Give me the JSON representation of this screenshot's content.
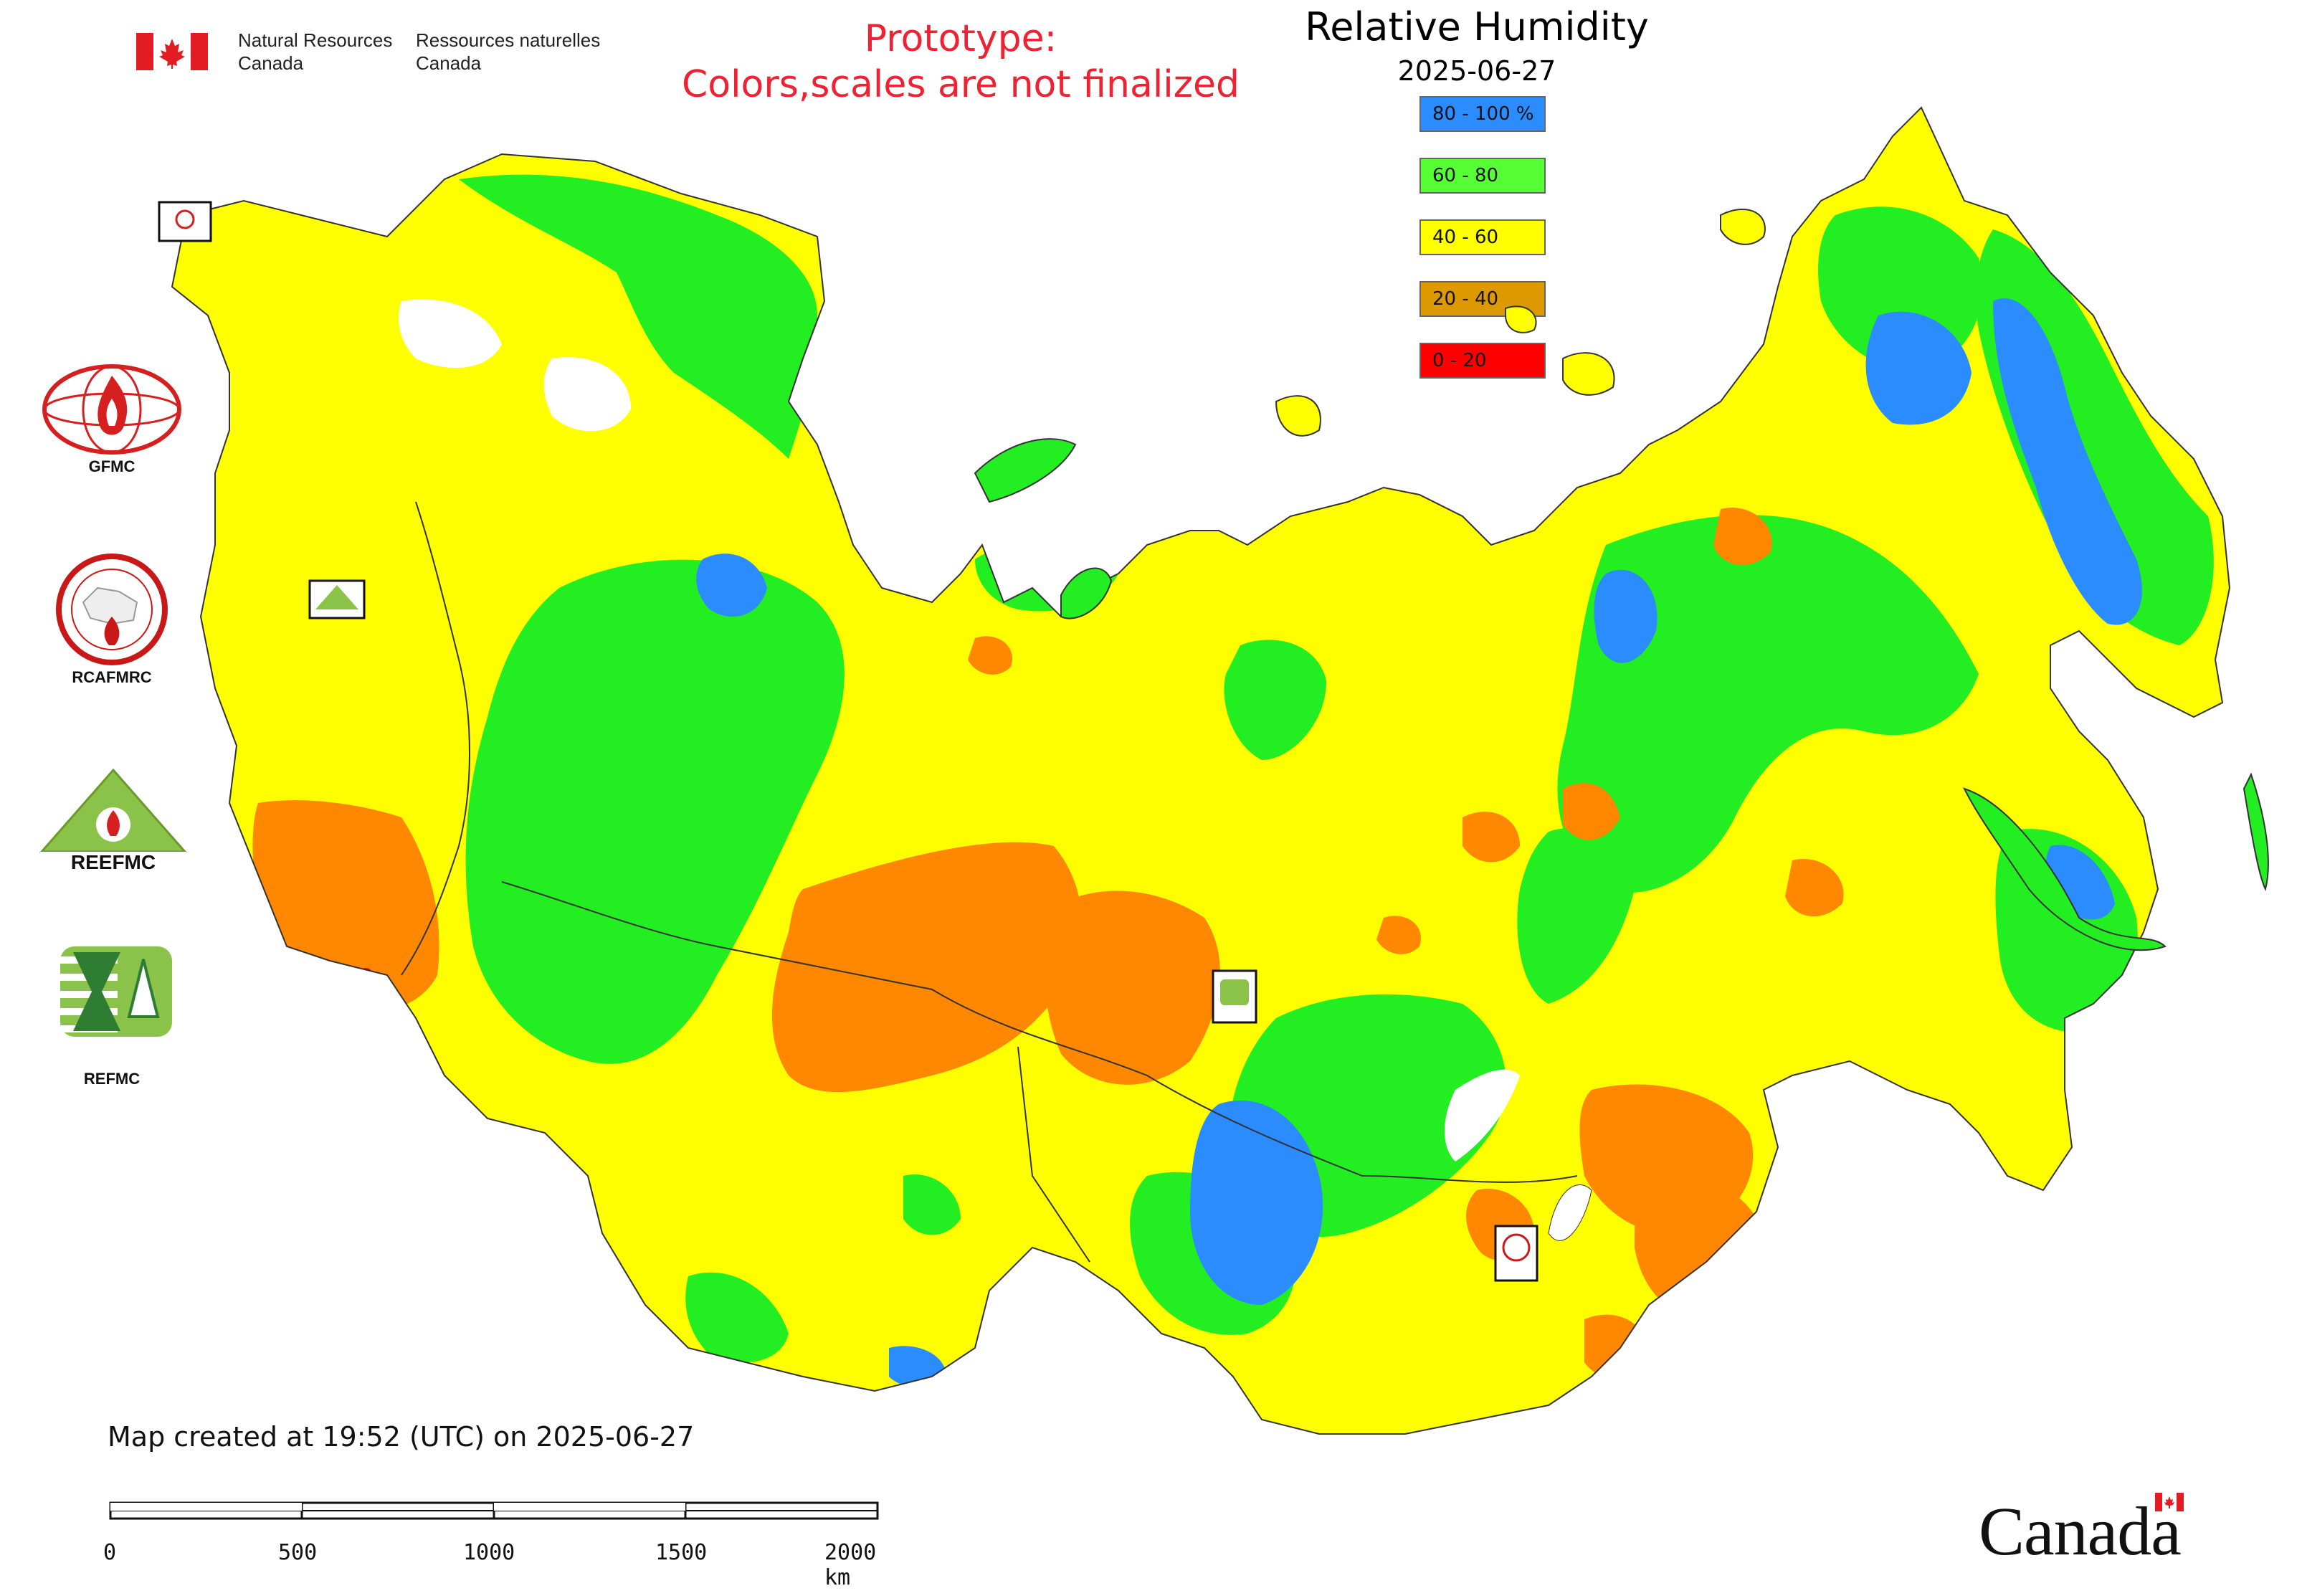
{
  "header": {
    "agency_en_line1": "Natural Resources",
    "agency_en_line2": "Canada",
    "agency_fr_line1": "Ressources naturelles",
    "agency_fr_line2": "Canada",
    "prototype_line1": "Prototype:",
    "prototype_line2": "Colors,scales are not finalized",
    "title": "Relative Humidity",
    "date": "2025-06-27"
  },
  "legend": {
    "items": [
      {
        "label": "80 - 100 %",
        "color": "#2a8cff"
      },
      {
        "label": "60 - 80",
        "color": "#55ff33"
      },
      {
        "label": "40 - 60",
        "color": "#ffff00"
      },
      {
        "label": "20 - 40",
        "color": "#dd9900"
      },
      {
        "label": "0 - 20",
        "color": "#ff0000"
      }
    ]
  },
  "map_colors": {
    "very_humid": "#2a8cff",
    "humid": "#22ee22",
    "moderate": "#ffff00",
    "dry": "#ff8800",
    "very_dry": "#ff0000",
    "borders": "#333333"
  },
  "logos": {
    "gfmc": "GFMC",
    "rcafmrc": "RCAFMRC",
    "reefmc_text": "REEFMC",
    "refmc": "REFMC"
  },
  "footer": {
    "created": "Map created at 19:52 (UTC) on 2025-06-27",
    "scale_ticks": [
      "0",
      "500",
      "1000",
      "1500",
      "2000 km"
    ],
    "wordmark": "Canada"
  }
}
